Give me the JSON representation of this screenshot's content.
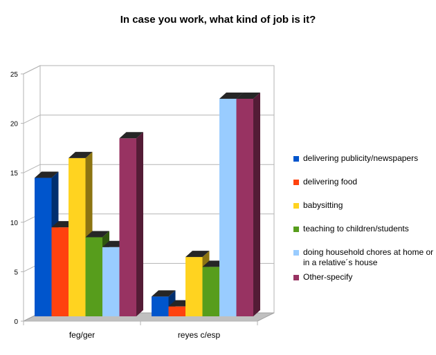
{
  "chart_data": {
    "type": "bar",
    "title": "In case you work, what kind of job is it?",
    "categories": [
      "feg/ger",
      "reyes c/esp"
    ],
    "series": [
      {
        "name": "delivering publicity/newspapers",
        "color": "#0055cc",
        "values": [
          14,
          2
        ]
      },
      {
        "name": "delivering food",
        "color": "#ff420e",
        "values": [
          9,
          1
        ]
      },
      {
        "name": "babysitting",
        "color": "#ffd320",
        "values": [
          16,
          6
        ]
      },
      {
        "name": "teaching to children/students",
        "color": "#579d1c",
        "values": [
          8,
          5
        ]
      },
      {
        "name": "doing household chores at home or in a relative´s house",
        "color": "#99ccff",
        "values": [
          7,
          22
        ]
      },
      {
        "name": "Other-specify",
        "color": "#983362",
        "values": [
          18,
          22
        ]
      }
    ],
    "yticks": [
      "0",
      "5",
      "10",
      "15",
      "20",
      "25"
    ],
    "ylim": [
      0,
      25
    ],
    "grid": true,
    "legend_position": "right",
    "style": "3d"
  }
}
